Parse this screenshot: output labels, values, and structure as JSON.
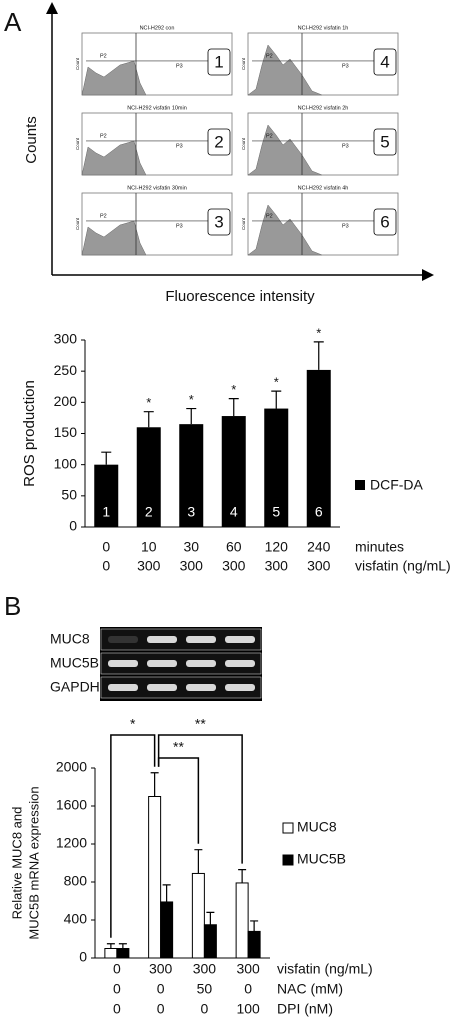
{
  "panel_labels": [
    "A",
    "B"
  ],
  "flow": {
    "y_label": "Counts",
    "x_label": "Fluorescence intensity",
    "gates": [
      "P2",
      "P3"
    ],
    "axis_label": "Count",
    "panels": [
      {
        "title": "NCI-H292 con",
        "number": "1"
      },
      {
        "title": "NCI-H292 visfatin 1h",
        "number": "4"
      },
      {
        "title": "NCI-H292 visfatin 10min",
        "number": "2"
      },
      {
        "title": "NCI-H292 visfatin 2h",
        "number": "5"
      },
      {
        "title": "NCI-H292 visfatin 30min",
        "number": "3"
      },
      {
        "title": "NCI-H292 visfatin 4h",
        "number": "6"
      }
    ]
  },
  "gel": {
    "rows": [
      "MUC8",
      "MUC5B",
      "GAPDH"
    ]
  },
  "chart_data": [
    {
      "type": "bar",
      "y_label": "ROS production",
      "ylim": [
        0,
        300
      ],
      "yticks": [
        0,
        50,
        100,
        150,
        200,
        250,
        300
      ],
      "series": [
        {
          "name": "DCF-DA",
          "color": "#000000",
          "values": [
            100,
            160,
            165,
            178,
            190,
            252
          ],
          "errors": [
            20,
            25,
            25,
            28,
            28,
            45
          ]
        }
      ],
      "bar_labels": [
        "1",
        "2",
        "3",
        "4",
        "5",
        "6"
      ],
      "significance": [
        {
          "index": 1,
          "label": "*"
        },
        {
          "index": 2,
          "label": "*"
        },
        {
          "index": 3,
          "label": "*"
        },
        {
          "index": 4,
          "label": "*"
        },
        {
          "index": 5,
          "label": "*"
        }
      ],
      "condition_rows": [
        {
          "name": "minutes",
          "values": [
            "0",
            "10",
            "30",
            "60",
            "120",
            "240"
          ]
        },
        {
          "name": "visfatin (ng/mL)",
          "values": [
            "0",
            "300",
            "300",
            "300",
            "300",
            "300"
          ]
        }
      ]
    },
    {
      "type": "grouped_bar",
      "y_label": [
        "Relative MUC8 and",
        "MUC5B mRNA expression"
      ],
      "ylim": [
        0,
        2000
      ],
      "yticks": [
        0,
        400,
        800,
        1200,
        1600,
        2000
      ],
      "series": [
        {
          "name": "MUC8",
          "color": "#ffffff",
          "values": [
            100,
            1700,
            890,
            790
          ],
          "errors": [
            50,
            250,
            250,
            140
          ]
        },
        {
          "name": "MUC5B",
          "color": "#000000",
          "values": [
            100,
            590,
            350,
            280
          ],
          "errors": [
            50,
            180,
            130,
            110
          ]
        }
      ],
      "brackets": [
        {
          "from": 0,
          "to": 1,
          "label": "*"
        },
        {
          "from": 1,
          "to": 2,
          "label": "**"
        },
        {
          "from": 1,
          "to": 3,
          "label": "**"
        }
      ],
      "condition_rows": [
        {
          "name": "visfatin (ng/mL)",
          "values": [
            "0",
            "300",
            "300",
            "300"
          ]
        },
        {
          "name": "NAC (mM)",
          "values": [
            "0",
            "0",
            "50",
            "0"
          ]
        },
        {
          "name": "DPI (nM)",
          "values": [
            "0",
            "0",
            "0",
            "100"
          ]
        }
      ]
    }
  ]
}
